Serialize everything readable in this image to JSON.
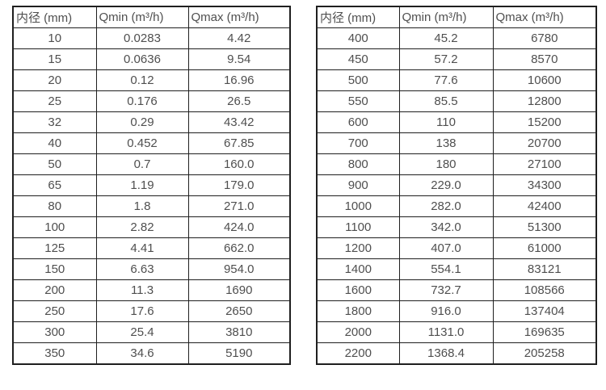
{
  "colors": {
    "border": "#1f1f1f",
    "text": "#4f4f4f",
    "background": "#ffffff"
  },
  "tables": [
    {
      "name": "flow-table-small-diameters",
      "headers": [
        "内径 (mm)",
        "Qmin (m³/h)",
        "Qmax (m³/h)"
      ],
      "rows": [
        [
          "10",
          "0.0283",
          "4.42"
        ],
        [
          "15",
          "0.0636",
          "9.54"
        ],
        [
          "20",
          "0.12",
          "16.96"
        ],
        [
          "25",
          "0.176",
          "26.5"
        ],
        [
          "32",
          "0.29",
          "43.42"
        ],
        [
          "40",
          "0.452",
          "67.85"
        ],
        [
          "50",
          "0.7",
          "160.0"
        ],
        [
          "65",
          "1.19",
          "179.0"
        ],
        [
          "80",
          "1.8",
          "271.0"
        ],
        [
          "100",
          "2.82",
          "424.0"
        ],
        [
          "125",
          "4.41",
          "662.0"
        ],
        [
          "150",
          "6.63",
          "954.0"
        ],
        [
          "200",
          "11.3",
          "1690"
        ],
        [
          "250",
          "17.6",
          "2650"
        ],
        [
          "300",
          "25.4",
          "3810"
        ],
        [
          "350",
          "34.6",
          "5190"
        ]
      ]
    },
    {
      "name": "flow-table-large-diameters",
      "headers": [
        "内径 (mm)",
        "Qmin (m³/h)",
        "Qmax (m³/h)"
      ],
      "rows": [
        [
          "400",
          "45.2",
          "6780"
        ],
        [
          "450",
          "57.2",
          "8570"
        ],
        [
          "500",
          "77.6",
          "10600"
        ],
        [
          "550",
          "85.5",
          "12800"
        ],
        [
          "600",
          "110",
          "15200"
        ],
        [
          "700",
          "138",
          "20700"
        ],
        [
          "800",
          "180",
          "27100"
        ],
        [
          "900",
          "229.0",
          "34300"
        ],
        [
          "1000",
          "282.0",
          "42400"
        ],
        [
          "1100",
          "342.0",
          "51300"
        ],
        [
          "1200",
          "407.0",
          "61000"
        ],
        [
          "1400",
          "554.1",
          "83121"
        ],
        [
          "1600",
          "732.7",
          "108566"
        ],
        [
          "1800",
          "916.0",
          "137404"
        ],
        [
          "2000",
          "1131.0",
          "169635"
        ],
        [
          "2200",
          "1368.4",
          "205258"
        ]
      ]
    }
  ]
}
